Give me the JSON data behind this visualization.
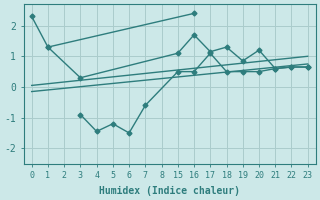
{
  "xlabel": "Humidex (Indice chaleur)",
  "bg_color": "#cce8e8",
  "line_color": "#2e7d7d",
  "grid_color": "#aacccc",
  "line_width": 1.0,
  "marker": "D",
  "marker_size": 2.5,
  "x_tick_positions": [
    0,
    1,
    2,
    3,
    4,
    5,
    6,
    7,
    8,
    9,
    10,
    11,
    12,
    13,
    14,
    15,
    16,
    17
  ],
  "x_tick_labels": [
    "0",
    "1",
    "2",
    "3",
    "4",
    "5",
    "6",
    "7",
    "8",
    "15",
    "16",
    "17",
    "18",
    "19",
    "20",
    "21",
    "22",
    "23"
  ],
  "line1_x": [
    0,
    1,
    10
  ],
  "line1_y": [
    2.3,
    1.3,
    2.4
  ],
  "line2_x": [
    1,
    3,
    9,
    10,
    11,
    12,
    13,
    14,
    15,
    16,
    17
  ],
  "line2_y": [
    1.3,
    0.3,
    1.1,
    1.7,
    1.15,
    1.3,
    0.85,
    1.2,
    0.6,
    0.65,
    0.65
  ],
  "line3_x": [
    0,
    17
  ],
  "line3_y": [
    0.05,
    1.0
  ],
  "line4_x": [
    0,
    17
  ],
  "line4_y": [
    -0.15,
    0.75
  ],
  "line5_x": [
    3,
    4,
    5,
    6,
    7,
    9,
    10,
    11,
    12,
    13,
    14,
    15,
    16,
    17
  ],
  "line5_y": [
    -0.9,
    -1.45,
    -1.2,
    -1.5,
    -0.6,
    0.5,
    0.5,
    1.1,
    0.5,
    0.5,
    0.5,
    0.6,
    0.65,
    0.65
  ],
  "xlim": [
    -0.5,
    17.5
  ],
  "ylim": [
    -2.5,
    2.7
  ]
}
